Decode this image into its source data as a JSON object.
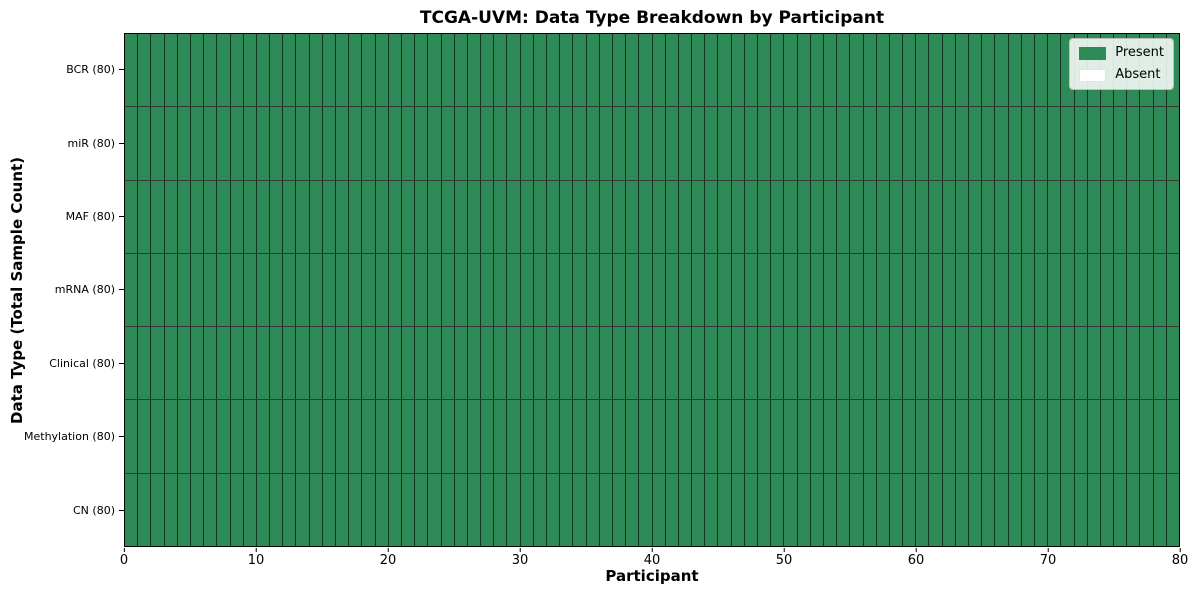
{
  "figure": {
    "background": "#ffffff"
  },
  "chart_data": {
    "type": "heatmap",
    "title": "TCGA-UVM: Data Type Breakdown by Participant",
    "xlabel": "Participant",
    "ylabel": "Data Type (Total Sample Count)",
    "x_range": [
      0,
      80
    ],
    "x_ticks": [
      0,
      10,
      20,
      30,
      40,
      50,
      60,
      70,
      80
    ],
    "participant_count": 80,
    "grid_on": false,
    "rows": [
      {
        "label": "BCR (80)",
        "present_count": 80,
        "absent_count": 0
      },
      {
        "label": "miR (80)",
        "present_count": 80,
        "absent_count": 0
      },
      {
        "label": "MAF (80)",
        "present_count": 80,
        "absent_count": 0
      },
      {
        "label": "mRNA (80)",
        "present_count": 80,
        "absent_count": 0
      },
      {
        "label": "Clinical (80)",
        "present_count": 80,
        "absent_count": 0
      },
      {
        "label": "Methylation (80)",
        "present_count": 80,
        "absent_count": 0
      },
      {
        "label": "CN (80)",
        "present_count": 80,
        "absent_count": 0
      }
    ],
    "legend": {
      "position": "upper right",
      "items": [
        {
          "label": "Present",
          "color": "#2e8b57"
        },
        {
          "label": "Absent",
          "color": "#ffffff"
        }
      ]
    },
    "colors": {
      "present": "#2e8b57",
      "absent": "#ffffff",
      "cell_edge": "#1c3326",
      "axis": "#000000"
    }
  }
}
